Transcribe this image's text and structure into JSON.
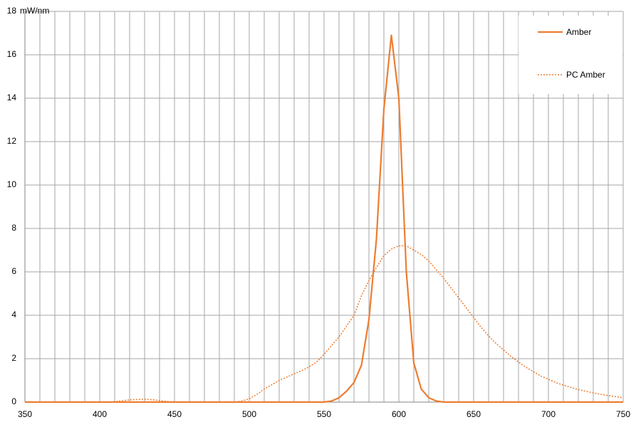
{
  "chart_data": {
    "type": "line",
    "y_label": "mW/nm",
    "x": [
      350,
      355,
      360,
      365,
      370,
      375,
      380,
      385,
      390,
      395,
      400,
      405,
      410,
      415,
      420,
      425,
      430,
      435,
      440,
      445,
      450,
      455,
      460,
      465,
      470,
      475,
      480,
      485,
      490,
      495,
      500,
      505,
      510,
      515,
      520,
      525,
      530,
      535,
      540,
      545,
      550,
      555,
      560,
      565,
      570,
      575,
      580,
      585,
      590,
      595,
      600,
      605,
      610,
      615,
      620,
      625,
      630,
      635,
      640,
      645,
      650,
      655,
      660,
      665,
      670,
      675,
      680,
      685,
      690,
      695,
      700,
      705,
      710,
      715,
      720,
      725,
      730,
      735,
      740,
      745,
      750
    ],
    "series": [
      {
        "name": "Amber",
        "color": "#ed7d31",
        "dash": "solid",
        "values": [
          0,
          0,
          0,
          0,
          0,
          0,
          0,
          0,
          0,
          0,
          0,
          0,
          0,
          0,
          0,
          0,
          0,
          0,
          0,
          0,
          0,
          0,
          0,
          0,
          0,
          0,
          0,
          0,
          0,
          0,
          0,
          0,
          0,
          0,
          0,
          0,
          0,
          0,
          0,
          0,
          0,
          0.05,
          0.2,
          0.5,
          0.9,
          1.7,
          3.8,
          7.5,
          13.5,
          16.9,
          14,
          6,
          1.8,
          0.6,
          0.2,
          0.05,
          0,
          0,
          0,
          0,
          0,
          0,
          0,
          0,
          0,
          0,
          0,
          0,
          0,
          0,
          0,
          0,
          0,
          0,
          0,
          0,
          0,
          0,
          0,
          0,
          0
        ]
      },
      {
        "name": "PC Amber",
        "color": "#ed7d31",
        "dash": "dotted",
        "values": [
          0,
          0,
          0,
          0,
          0,
          0,
          0,
          0,
          0,
          0,
          0,
          0,
          0.02,
          0.06,
          0.1,
          0.12,
          0.13,
          0.11,
          0.07,
          0.03,
          0,
          0,
          0,
          0,
          0,
          0,
          0,
          0,
          0,
          0.05,
          0.15,
          0.35,
          0.6,
          0.8,
          1.0,
          1.15,
          1.3,
          1.45,
          1.62,
          1.85,
          2.2,
          2.6,
          3.0,
          3.5,
          4.0,
          4.9,
          5.6,
          6.2,
          6.75,
          7.05,
          7.2,
          7.2,
          7.0,
          6.8,
          6.5,
          6.1,
          5.7,
          5.25,
          4.8,
          4.35,
          3.9,
          3.45,
          3.05,
          2.7,
          2.4,
          2.1,
          1.85,
          1.6,
          1.4,
          1.2,
          1.05,
          0.9,
          0.78,
          0.68,
          0.58,
          0.5,
          0.42,
          0.36,
          0.3,
          0.25,
          0.2
        ]
      }
    ],
    "xlim": [
      350,
      750
    ],
    "ylim": [
      0,
      18
    ],
    "xticks": [
      350,
      400,
      450,
      500,
      550,
      600,
      650,
      700,
      750
    ],
    "xgrid": [
      350,
      360,
      370,
      380,
      390,
      400,
      410,
      420,
      430,
      440,
      450,
      460,
      470,
      480,
      490,
      500,
      510,
      520,
      530,
      540,
      550,
      560,
      570,
      580,
      590,
      600,
      610,
      620,
      630,
      640,
      650,
      660,
      670,
      680,
      690,
      700,
      710,
      720,
      730,
      740,
      750
    ],
    "yticks": [
      0,
      2,
      4,
      6,
      8,
      10,
      12,
      14,
      16,
      18
    ],
    "grid": true,
    "legend": "top-right"
  }
}
